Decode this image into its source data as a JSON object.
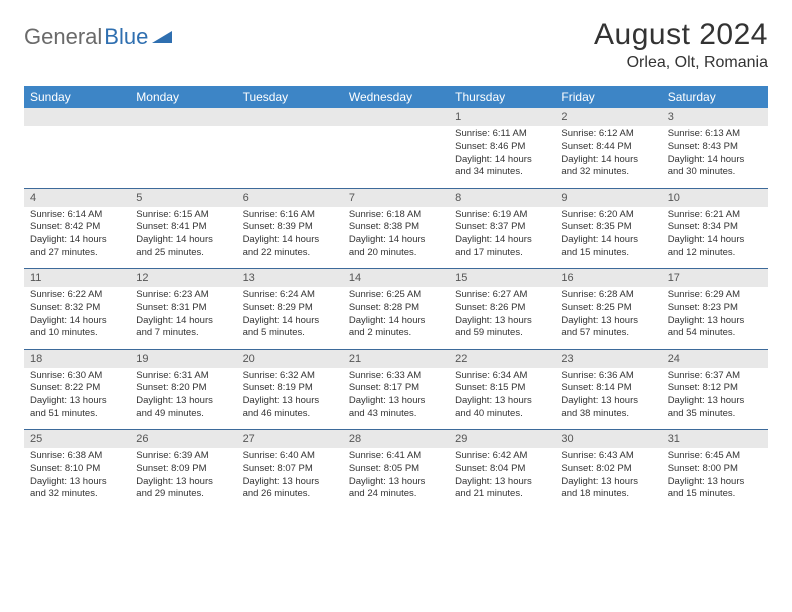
{
  "logo": {
    "part1": "General",
    "part2": "Blue",
    "icon_color": "#2f6fb0"
  },
  "title": "August 2024",
  "location": "Orlea, Olt, Romania",
  "day_headers": [
    "Sunday",
    "Monday",
    "Tuesday",
    "Wednesday",
    "Thursday",
    "Friday",
    "Saturday"
  ],
  "colors": {
    "header_bg": "#3d85c6",
    "header_text": "#ffffff",
    "date_bg": "#e8e8e8",
    "row_border": "#3d6a9a",
    "body_text": "#333333"
  },
  "weeks": [
    {
      "dates": [
        "",
        "",
        "",
        "",
        "1",
        "2",
        "3"
      ],
      "cells": [
        null,
        null,
        null,
        null,
        {
          "sunrise": "Sunrise: 6:11 AM",
          "sunset": "Sunset: 8:46 PM",
          "daylight": "Daylight: 14 hours and 34 minutes."
        },
        {
          "sunrise": "Sunrise: 6:12 AM",
          "sunset": "Sunset: 8:44 PM",
          "daylight": "Daylight: 14 hours and 32 minutes."
        },
        {
          "sunrise": "Sunrise: 6:13 AM",
          "sunset": "Sunset: 8:43 PM",
          "daylight": "Daylight: 14 hours and 30 minutes."
        }
      ]
    },
    {
      "dates": [
        "4",
        "5",
        "6",
        "7",
        "8",
        "9",
        "10"
      ],
      "cells": [
        {
          "sunrise": "Sunrise: 6:14 AM",
          "sunset": "Sunset: 8:42 PM",
          "daylight": "Daylight: 14 hours and 27 minutes."
        },
        {
          "sunrise": "Sunrise: 6:15 AM",
          "sunset": "Sunset: 8:41 PM",
          "daylight": "Daylight: 14 hours and 25 minutes."
        },
        {
          "sunrise": "Sunrise: 6:16 AM",
          "sunset": "Sunset: 8:39 PM",
          "daylight": "Daylight: 14 hours and 22 minutes."
        },
        {
          "sunrise": "Sunrise: 6:18 AM",
          "sunset": "Sunset: 8:38 PM",
          "daylight": "Daylight: 14 hours and 20 minutes."
        },
        {
          "sunrise": "Sunrise: 6:19 AM",
          "sunset": "Sunset: 8:37 PM",
          "daylight": "Daylight: 14 hours and 17 minutes."
        },
        {
          "sunrise": "Sunrise: 6:20 AM",
          "sunset": "Sunset: 8:35 PM",
          "daylight": "Daylight: 14 hours and 15 minutes."
        },
        {
          "sunrise": "Sunrise: 6:21 AM",
          "sunset": "Sunset: 8:34 PM",
          "daylight": "Daylight: 14 hours and 12 minutes."
        }
      ]
    },
    {
      "dates": [
        "11",
        "12",
        "13",
        "14",
        "15",
        "16",
        "17"
      ],
      "cells": [
        {
          "sunrise": "Sunrise: 6:22 AM",
          "sunset": "Sunset: 8:32 PM",
          "daylight": "Daylight: 14 hours and 10 minutes."
        },
        {
          "sunrise": "Sunrise: 6:23 AM",
          "sunset": "Sunset: 8:31 PM",
          "daylight": "Daylight: 14 hours and 7 minutes."
        },
        {
          "sunrise": "Sunrise: 6:24 AM",
          "sunset": "Sunset: 8:29 PM",
          "daylight": "Daylight: 14 hours and 5 minutes."
        },
        {
          "sunrise": "Sunrise: 6:25 AM",
          "sunset": "Sunset: 8:28 PM",
          "daylight": "Daylight: 14 hours and 2 minutes."
        },
        {
          "sunrise": "Sunrise: 6:27 AM",
          "sunset": "Sunset: 8:26 PM",
          "daylight": "Daylight: 13 hours and 59 minutes."
        },
        {
          "sunrise": "Sunrise: 6:28 AM",
          "sunset": "Sunset: 8:25 PM",
          "daylight": "Daylight: 13 hours and 57 minutes."
        },
        {
          "sunrise": "Sunrise: 6:29 AM",
          "sunset": "Sunset: 8:23 PM",
          "daylight": "Daylight: 13 hours and 54 minutes."
        }
      ]
    },
    {
      "dates": [
        "18",
        "19",
        "20",
        "21",
        "22",
        "23",
        "24"
      ],
      "cells": [
        {
          "sunrise": "Sunrise: 6:30 AM",
          "sunset": "Sunset: 8:22 PM",
          "daylight": "Daylight: 13 hours and 51 minutes."
        },
        {
          "sunrise": "Sunrise: 6:31 AM",
          "sunset": "Sunset: 8:20 PM",
          "daylight": "Daylight: 13 hours and 49 minutes."
        },
        {
          "sunrise": "Sunrise: 6:32 AM",
          "sunset": "Sunset: 8:19 PM",
          "daylight": "Daylight: 13 hours and 46 minutes."
        },
        {
          "sunrise": "Sunrise: 6:33 AM",
          "sunset": "Sunset: 8:17 PM",
          "daylight": "Daylight: 13 hours and 43 minutes."
        },
        {
          "sunrise": "Sunrise: 6:34 AM",
          "sunset": "Sunset: 8:15 PM",
          "daylight": "Daylight: 13 hours and 40 minutes."
        },
        {
          "sunrise": "Sunrise: 6:36 AM",
          "sunset": "Sunset: 8:14 PM",
          "daylight": "Daylight: 13 hours and 38 minutes."
        },
        {
          "sunrise": "Sunrise: 6:37 AM",
          "sunset": "Sunset: 8:12 PM",
          "daylight": "Daylight: 13 hours and 35 minutes."
        }
      ]
    },
    {
      "dates": [
        "25",
        "26",
        "27",
        "28",
        "29",
        "30",
        "31"
      ],
      "cells": [
        {
          "sunrise": "Sunrise: 6:38 AM",
          "sunset": "Sunset: 8:10 PM",
          "daylight": "Daylight: 13 hours and 32 minutes."
        },
        {
          "sunrise": "Sunrise: 6:39 AM",
          "sunset": "Sunset: 8:09 PM",
          "daylight": "Daylight: 13 hours and 29 minutes."
        },
        {
          "sunrise": "Sunrise: 6:40 AM",
          "sunset": "Sunset: 8:07 PM",
          "daylight": "Daylight: 13 hours and 26 minutes."
        },
        {
          "sunrise": "Sunrise: 6:41 AM",
          "sunset": "Sunset: 8:05 PM",
          "daylight": "Daylight: 13 hours and 24 minutes."
        },
        {
          "sunrise": "Sunrise: 6:42 AM",
          "sunset": "Sunset: 8:04 PM",
          "daylight": "Daylight: 13 hours and 21 minutes."
        },
        {
          "sunrise": "Sunrise: 6:43 AM",
          "sunset": "Sunset: 8:02 PM",
          "daylight": "Daylight: 13 hours and 18 minutes."
        },
        {
          "sunrise": "Sunrise: 6:45 AM",
          "sunset": "Sunset: 8:00 PM",
          "daylight": "Daylight: 13 hours and 15 minutes."
        }
      ]
    }
  ]
}
